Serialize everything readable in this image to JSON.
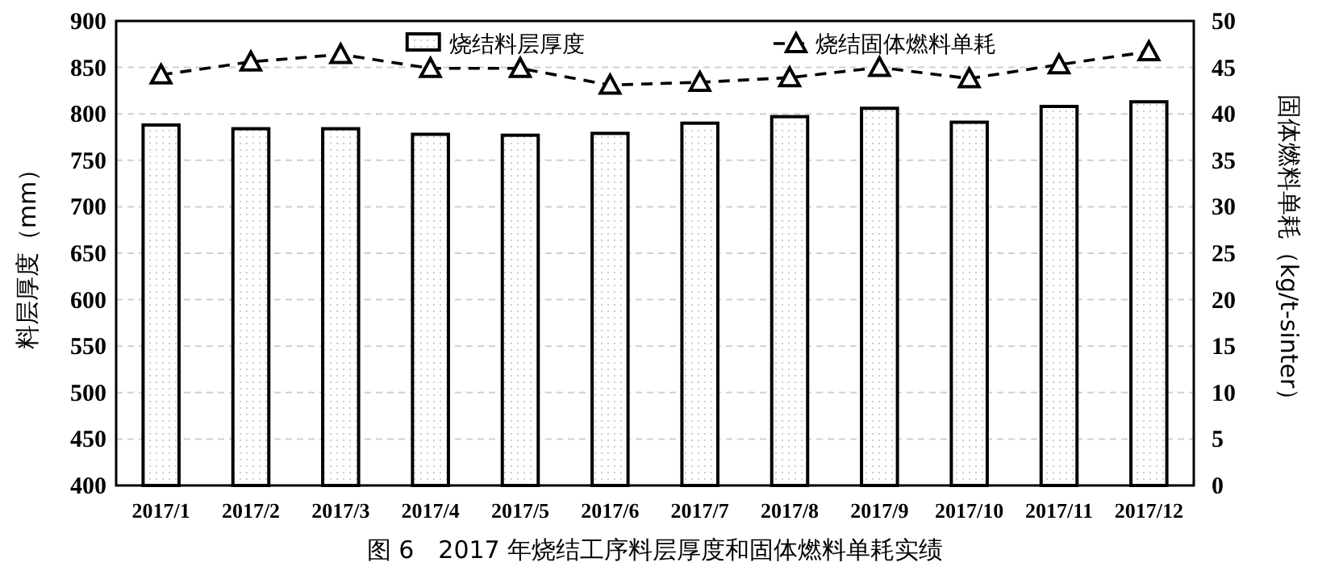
{
  "chart_data": {
    "type": "bar",
    "categories": [
      "2017/1",
      "2017/2",
      "2017/3",
      "2017/4",
      "2017/5",
      "2017/6",
      "2017/7",
      "2017/8",
      "2017/9",
      "2017/10",
      "2017/11",
      "2017/12"
    ],
    "series": [
      {
        "name": "烧结料层厚度",
        "color": "#000000",
        "values": [
          788,
          784,
          784,
          778,
          777,
          779,
          790,
          797,
          806,
          791,
          808,
          813
        ]
      },
      {
        "name": "烧结固体燃料单耗",
        "type": "line",
        "axis": "y2",
        "color": "#000000",
        "marker": "triangle",
        "line_style": "dashed",
        "values": [
          44.2,
          45.6,
          46.4,
          44.9,
          44.9,
          43.1,
          43.4,
          43.9,
          45.0,
          43.8,
          45.3,
          46.7
        ]
      }
    ],
    "ylim": [
      400,
      900
    ],
    "yticks": [
      400,
      450,
      500,
      550,
      600,
      650,
      700,
      750,
      800,
      850,
      900
    ],
    "y2lim": [
      0,
      50
    ],
    "y2ticks": [
      0,
      5,
      10,
      15,
      20,
      25,
      30,
      35,
      40,
      45,
      50
    ],
    "ylabel": "料层厚度（mm）",
    "y2label": "固体燃料单耗（kg/t-sinter）",
    "grid": "y",
    "legend": "top",
    "annotations": [
      "图 6　2017 年烧结工序料层厚度和固体燃料单耗实绩"
    ]
  }
}
